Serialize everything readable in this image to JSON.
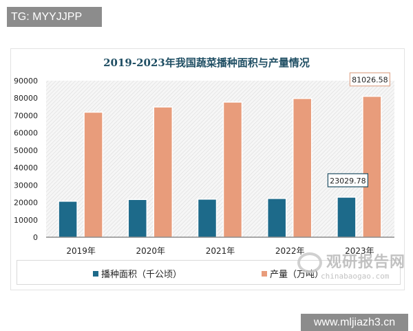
{
  "watermark_top": "TG: MYYJJPP",
  "watermark_bottom": "www.mljiazh3.cn",
  "logo": {
    "cn": "观研报告网",
    "en": "chinabaogao.com"
  },
  "colors": {
    "area": "#1d6a8a",
    "production": "#e89c7b",
    "title": "#1f4e63"
  },
  "chart_data": {
    "type": "bar",
    "title": "2019-2023年我国蔬菜播种面积与产量情况",
    "categories": [
      "2019年",
      "2020年",
      "2021年",
      "2022年",
      "2023年"
    ],
    "series": [
      {
        "name": "播种面积（千公顷）",
        "values": [
          20700,
          21700,
          21900,
          22300,
          23029.78
        ]
      },
      {
        "name": "产量（万吨）",
        "values": [
          71900,
          74900,
          77700,
          79800,
          81026.58
        ]
      }
    ],
    "data_labels": [
      {
        "series": 0,
        "index": 4,
        "text": "23029.78"
      },
      {
        "series": 1,
        "index": 4,
        "text": "81026.58"
      }
    ],
    "ylim": [
      0,
      90000
    ],
    "yticks": [
      "0",
      "10000",
      "20000",
      "30000",
      "40000",
      "50000",
      "60000",
      "70000",
      "80000",
      "90000"
    ],
    "grid": false,
    "legend": "bottom"
  }
}
